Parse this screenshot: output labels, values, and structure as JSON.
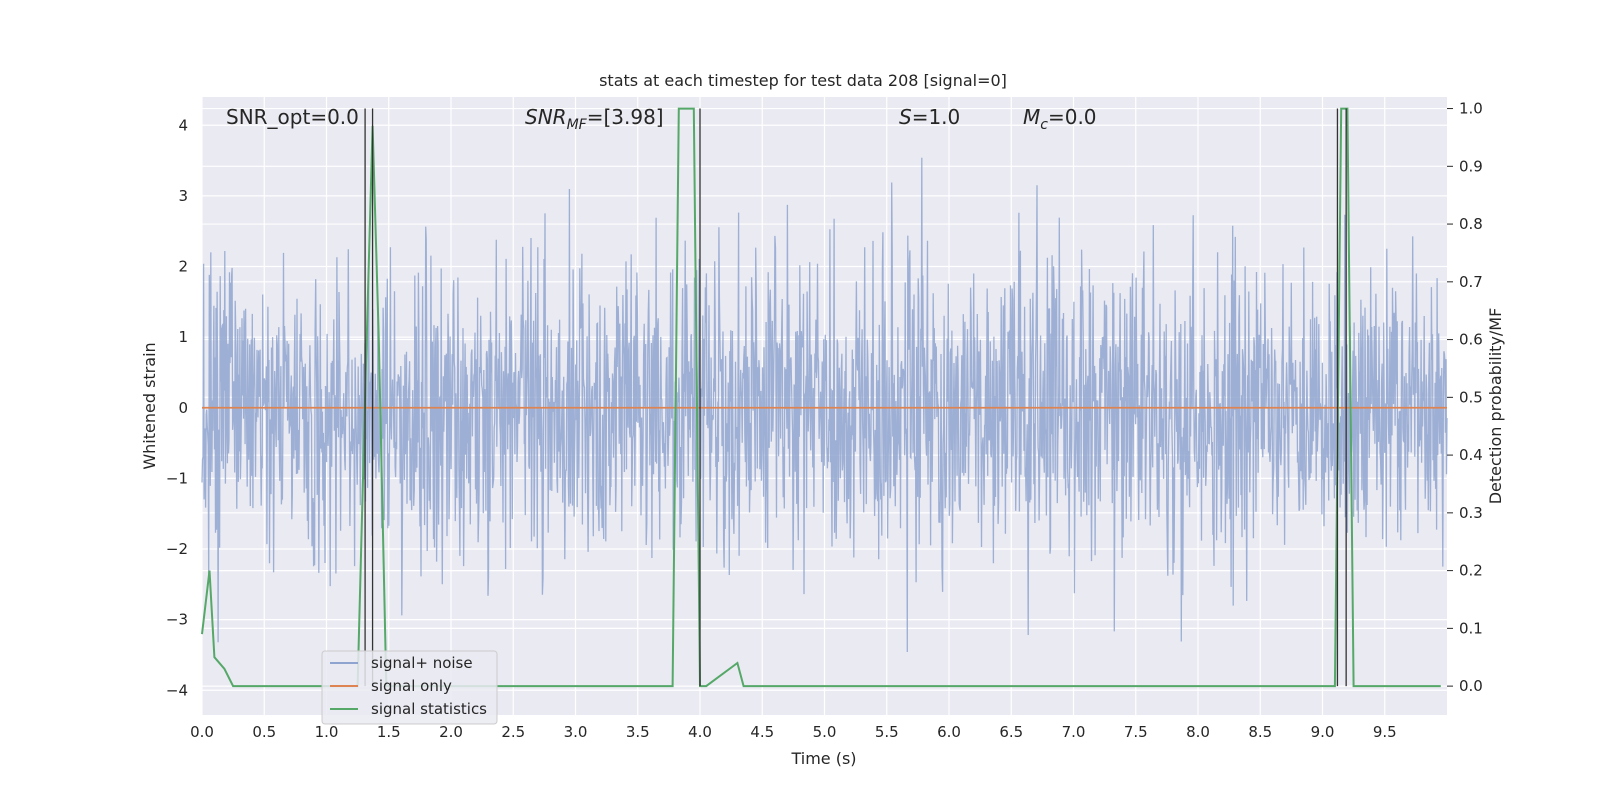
{
  "chart_data": {
    "type": "line",
    "title": "stats at each timestep for test data 208 [signal=0]",
    "xlabel": "Time (s)",
    "ylabel": "Whitened strain",
    "ylabel_right": "Detection probability/MF",
    "xlim": [
      0.0,
      10.0
    ],
    "ylim": [
      -4.35,
      4.4
    ],
    "ylim_right": [
      -0.05,
      1.02
    ],
    "x_ticks": [
      "0.0",
      "0.5",
      "1.0",
      "1.5",
      "2.0",
      "2.5",
      "3.0",
      "3.5",
      "4.0",
      "4.5",
      "5.0",
      "5.5",
      "6.0",
      "6.5",
      "7.0",
      "7.5",
      "8.0",
      "8.5",
      "9.0",
      "9.5"
    ],
    "y_ticks": [
      "4",
      "3",
      "2",
      "1",
      "0",
      "−1",
      "−2",
      "−3",
      "−4"
    ],
    "y_right_ticks": [
      "1.0",
      "0.9",
      "0.8",
      "0.7",
      "0.6",
      "0.5",
      "0.4",
      "0.3",
      "0.2",
      "0.1",
      "0.0"
    ],
    "grid": true,
    "legend_position": "lower-left",
    "annotations": {
      "snr_opt": "SNR_opt=0.0",
      "snr_mf_main": "SNR",
      "snr_mf_sub": "MF",
      "snr_mf_value": "=[3.98]",
      "s_main": "S",
      "s_value": "=1.0",
      "mc_main": "M",
      "mc_sub": "c",
      "mc_value": "=0.0"
    },
    "series": [
      {
        "name": "signal+ noise",
        "axis": "left",
        "color": "#8fa5cf",
        "description_range": [
          -3.6,
          3.6
        ]
      },
      {
        "name": "signal only",
        "axis": "left",
        "color": "#dd8452",
        "x": [
          0.0,
          10.0
        ],
        "y": [
          0.0,
          0.0
        ]
      },
      {
        "name": "signal statistics",
        "axis": "right",
        "color": "#55a868",
        "x": [
          0.0,
          0.06,
          0.1,
          0.18,
          0.25,
          1.25,
          1.31,
          1.37,
          1.42,
          1.48,
          1.55,
          3.78,
          3.83,
          3.88,
          3.95,
          4.0,
          4.05,
          4.3,
          4.35,
          4.4,
          9.1,
          9.15,
          9.2,
          9.25,
          9.3,
          9.95
        ],
        "y": [
          0.09,
          0.2,
          0.05,
          0.03,
          0.0,
          0.0,
          0.5,
          0.97,
          0.6,
          0.0,
          0.0,
          0.0,
          1.0,
          1.0,
          1.0,
          0.0,
          0.0,
          0.04,
          0.0,
          0.0,
          0.0,
          1.0,
          1.0,
          0.0,
          0.0,
          0.0
        ]
      }
    ],
    "vertical_markers_x": [
      1.31,
      1.37,
      4.0,
      9.12,
      9.19
    ],
    "colors": {
      "plot_background": "#eaeaf2",
      "grid": "#ffffff",
      "marker_line": "#333333"
    }
  }
}
